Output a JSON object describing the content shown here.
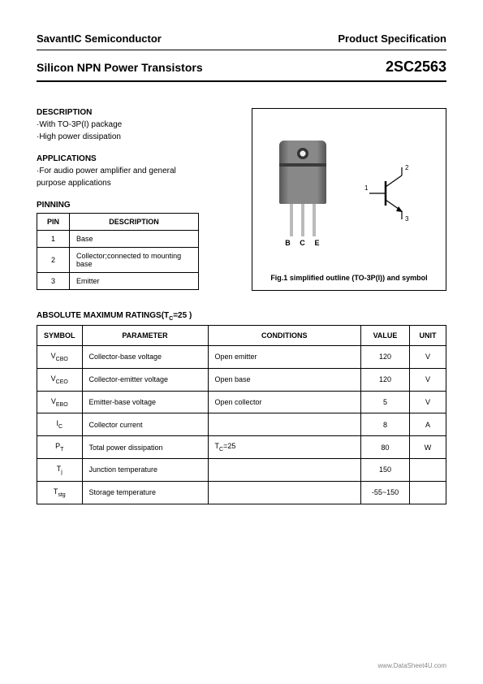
{
  "header": {
    "company": "SavantIC Semiconductor",
    "docType": "Product Specification"
  },
  "title": {
    "left": "Silicon NPN Power Transistors",
    "partNumber": "2SC2563"
  },
  "description": {
    "heading": "DESCRIPTION",
    "lines": [
      "·With TO-3P(I) package",
      "·High power dissipation"
    ]
  },
  "applications": {
    "heading": "APPLICATIONS",
    "lines": [
      "·For audio power amplifier and general",
      "  purpose applications"
    ]
  },
  "pinning": {
    "heading": "PINNING",
    "cols": [
      "PIN",
      "DESCRIPTION"
    ],
    "rows": [
      {
        "pin": "1",
        "desc": "Base"
      },
      {
        "pin": "2",
        "desc": "Collector;connected to mounting base"
      },
      {
        "pin": "3",
        "desc": "Emitter"
      }
    ]
  },
  "figure": {
    "pkgLabels": [
      "B",
      "C",
      "E"
    ],
    "symbol": {
      "pin1": "1",
      "pin2": "2",
      "pin3": "3"
    },
    "caption": "Fig.1 simplified outline (TO-3P(I)) and symbol"
  },
  "ratings": {
    "heading": "ABSOLUTE MAXIMUM RATINGS(T",
    "headingSub": "C",
    "headingTail": "=25   )",
    "cols": [
      "SYMBOL",
      "PARAMETER",
      "CONDITIONS",
      "VALUE",
      "UNIT"
    ],
    "rows": [
      {
        "sym": "V",
        "symSub": "CBO",
        "param": "Collector-base voltage",
        "cond": "Open emitter",
        "val": "120",
        "unit": "V"
      },
      {
        "sym": "V",
        "symSub": "CEO",
        "param": "Collector-emitter voltage",
        "cond": "Open base",
        "val": "120",
        "unit": "V"
      },
      {
        "sym": "V",
        "symSub": "EBO",
        "param": "Emitter-base voltage",
        "cond": "Open collector",
        "val": "5",
        "unit": "V"
      },
      {
        "sym": "I",
        "symSub": "C",
        "param": "Collector current",
        "cond": "",
        "val": "8",
        "unit": "A"
      },
      {
        "sym": "P",
        "symSub": "T",
        "param": "Total power dissipation",
        "cond": "T",
        "condSub": "C",
        "condTail": "=25",
        "val": "80",
        "unit": "W"
      },
      {
        "sym": "T",
        "symSub": "j",
        "param": "Junction temperature",
        "cond": "",
        "val": "150",
        "unit": ""
      },
      {
        "sym": "T",
        "symSub": "stg",
        "param": "Storage temperature",
        "cond": "",
        "val": "-55~150",
        "unit": ""
      }
    ]
  },
  "footer": "www.DataSheet4U.com",
  "colors": {
    "text": "#000000",
    "background": "#ffffff",
    "border": "#000000",
    "footer": "#888888"
  }
}
